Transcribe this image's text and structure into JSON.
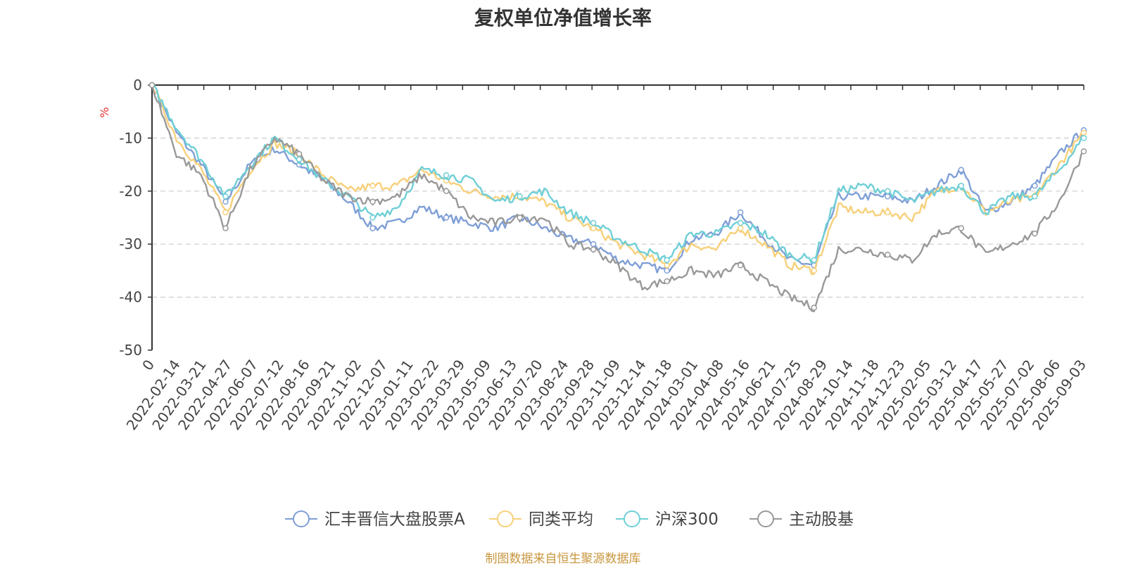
{
  "title": "复权单位净值增长率",
  "source_note": "制图数据来自恒生聚源数据库",
  "chart_data": {
    "type": "line",
    "title": "复权单位净值增长率",
    "ylabel": "%",
    "ylim": [
      -50,
      0
    ],
    "yticks": [
      0,
      -10,
      -20,
      -30,
      -40,
      -50
    ],
    "xlabel": "",
    "x_tick_labels": [
      "0",
      "2022-02-14",
      "2022-03-21",
      "2022-04-27",
      "2022-06-07",
      "2022-07-12",
      "2022-08-16",
      "2022-09-21",
      "2022-11-02",
      "2022-12-07",
      "2023-01-11",
      "2023-02-22",
      "2023-03-29",
      "2023-05-09",
      "2023-06-13",
      "2023-07-20",
      "2023-08-24",
      "2023-09-28",
      "2023-11-09",
      "2023-12-14",
      "2024-01-18",
      "2024-03-01",
      "2024-04-08",
      "2024-05-16",
      "2024-06-21",
      "2024-07-25",
      "2024-08-29",
      "2024-10-14",
      "2024-11-18",
      "2024-12-23",
      "2025-02-05",
      "2025-03-12",
      "2025-04-17",
      "2025-05-27",
      "2025-07-02",
      "2025-08-06",
      "2025-09-03"
    ],
    "grid": "horizontal dashed",
    "legend_position": "bottom",
    "series": [
      {
        "name": "汇丰晋信大盘股票A",
        "color": "#7f9fd6",
        "values": [
          0,
          -9,
          -15,
          -22,
          -15,
          -12,
          -15,
          -18,
          -22,
          -27,
          -26,
          -23,
          -25,
          -26,
          -27,
          -25,
          -27,
          -29,
          -30,
          -33,
          -34,
          -35,
          -29,
          -28,
          -24,
          -29,
          -33,
          -34,
          -21,
          -21,
          -21,
          -22,
          -19,
          -16,
          -24,
          -22,
          -19,
          -13,
          -8.5
        ]
      },
      {
        "name": "同类平均",
        "color": "#f7d07a",
        "values": [
          0,
          -10,
          -16,
          -24,
          -16,
          -11,
          -13,
          -17,
          -20,
          -19,
          -19,
          -16,
          -18,
          -20,
          -21,
          -21,
          -22,
          -25,
          -27,
          -30,
          -32,
          -34,
          -30,
          -31,
          -27,
          -30,
          -34,
          -35,
          -23,
          -24,
          -24,
          -25,
          -20,
          -19,
          -24,
          -22,
          -21,
          -15,
          -9
        ]
      },
      {
        "name": "沪深300",
        "color": "#6fcfd6",
        "values": [
          0,
          -8,
          -14,
          -21,
          -15,
          -10,
          -14,
          -18,
          -21,
          -25,
          -23,
          -16,
          -17,
          -18,
          -22,
          -21,
          -20,
          -24,
          -26,
          -29,
          -31,
          -33,
          -28,
          -28,
          -26,
          -28,
          -32,
          -33,
          -20,
          -19,
          -20,
          -22,
          -20,
          -19,
          -24,
          -21,
          -21,
          -16,
          -10
        ]
      },
      {
        "name": "主动股基",
        "color": "#999999",
        "values": [
          0,
          -13,
          -17,
          -27,
          -16,
          -10,
          -13,
          -18,
          -21,
          -22,
          -21,
          -17,
          -20,
          -25,
          -26,
          -25,
          -25,
          -30,
          -31,
          -34,
          -38,
          -37,
          -35,
          -36,
          -34,
          -37,
          -40,
          -42,
          -31,
          -31,
          -32,
          -33,
          -28,
          -27,
          -32,
          -30,
          -28,
          -22,
          -12.5
        ]
      }
    ]
  }
}
